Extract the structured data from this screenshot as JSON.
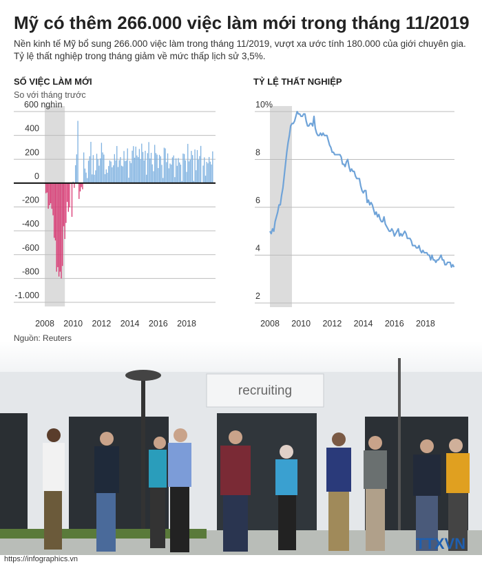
{
  "title": "Mỹ có thêm 266.000 việc làm mới trong tháng 11/2019",
  "description": [
    "Nền kinh tế Mỹ bổ sung 266.000 việc làm trong tháng 11/2019, vượt xa ước tính 180.000 của giới chuyên gia.",
    "Tỷ lệ thất nghiệp trong tháng giảm về mức thấp lịch sử 3,5%."
  ],
  "source": "Nguồn: Reuters",
  "photo": {
    "sign": "recruiting",
    "logo": "TTXVN"
  },
  "url": "https://infographics.vn",
  "chart_data": [
    {
      "type": "bar",
      "title": "SỐ VIỆC LÀM MỚI",
      "subtitle": "So với tháng trước",
      "color": "#7eb1e0",
      "negative_color": "#d8336f",
      "zero_line": true,
      "grid": true,
      "ylim": [
        -1000,
        600
      ],
      "yticks": [
        {
          "value": 600,
          "label": "600 nghìn"
        },
        400,
        200,
        0,
        -200,
        -400,
        -600,
        -800,
        {
          "value": -1000,
          "label": "-1.000"
        }
      ],
      "shade": {
        "from": 0,
        "to": 17
      },
      "categories": [
        "2008",
        null,
        null,
        null,
        null,
        null,
        null,
        null,
        null,
        null,
        null,
        null,
        null,
        null,
        null,
        null,
        null,
        null,
        null,
        null,
        null,
        null,
        null,
        null,
        "2010",
        null,
        null,
        null,
        null,
        null,
        null,
        null,
        null,
        null,
        null,
        null,
        null,
        null,
        null,
        null,
        null,
        null,
        null,
        null,
        null,
        null,
        null,
        null,
        "2012",
        null,
        null,
        null,
        null,
        null,
        null,
        null,
        null,
        null,
        null,
        null,
        null,
        null,
        null,
        null,
        null,
        null,
        null,
        null,
        null,
        null,
        null,
        null,
        "2014",
        null,
        null,
        null,
        null,
        null,
        null,
        null,
        null,
        null,
        null,
        null,
        null,
        null,
        null,
        null,
        null,
        null,
        null,
        null,
        null,
        null,
        null,
        null,
        "2016",
        null,
        null,
        null,
        null,
        null,
        null,
        null,
        null,
        null,
        null,
        null,
        null,
        null,
        null,
        null,
        null,
        null,
        null,
        null,
        null,
        null,
        null,
        null,
        "2018",
        null,
        null,
        null,
        null,
        null,
        null,
        null,
        null,
        null,
        null,
        null,
        null,
        null,
        null,
        null,
        null,
        null,
        null,
        null,
        null,
        null,
        null
      ],
      "values": [
        -7,
        -85,
        -79,
        -215,
        -186,
        -169,
        -216,
        -270,
        -459,
        -481,
        -743,
        -705,
        -784,
        -743,
        -800,
        -695,
        -362,
        -469,
        -334,
        -158,
        -241,
        -204,
        -6,
        -283,
        13,
        -40,
        150,
        241,
        522,
        -133,
        -70,
        -34,
        -52,
        257,
        122,
        88,
        42,
        188,
        225,
        346,
        73,
        235,
        70,
        107,
        246,
        202,
        146,
        207,
        338,
        257,
        239,
        75,
        115,
        87,
        143,
        190,
        181,
        132,
        149,
        243,
        190,
        311,
        135,
        192,
        218,
        146,
        140,
        269,
        185,
        189,
        291,
        45,
        187,
        168,
        272,
        310,
        213,
        306,
        232,
        218,
        286,
        200,
        331,
        261,
        190,
        271,
        70,
        251,
        344,
        206,
        254,
        157,
        100,
        321,
        252,
        239,
        126,
        237,
        225,
        153,
        43,
        297,
        291,
        176,
        249,
        124,
        164,
        155,
        216,
        232,
        50,
        207,
        145,
        210,
        173,
        155,
        18,
        248,
        244,
        191,
        94,
        329,
        182,
        196,
        270,
        235,
        19,
        282,
        108,
        277,
        196,
        227,
        312,
        1,
        147,
        216,
        62,
        178,
        166,
        219,
        180,
        156,
        266
      ]
    },
    {
      "type": "line",
      "title": "TỶ LỆ THẤT NGHIỆP",
      "color": "#6fa3d8",
      "grid": true,
      "ylim": [
        2,
        10
      ],
      "yticks": [
        {
          "value": 10,
          "label": "10%"
        },
        8,
        6,
        4,
        2
      ],
      "shade": {
        "from": 0,
        "to": 17
      },
      "categories": [
        "2008",
        null,
        null,
        null,
        null,
        null,
        null,
        null,
        null,
        null,
        null,
        null,
        null,
        null,
        null,
        null,
        null,
        null,
        null,
        null,
        null,
        null,
        null,
        null,
        "2010",
        null,
        null,
        null,
        null,
        null,
        null,
        null,
        null,
        null,
        null,
        null,
        null,
        null,
        null,
        null,
        null,
        null,
        null,
        null,
        null,
        null,
        null,
        null,
        "2012",
        null,
        null,
        null,
        null,
        null,
        null,
        null,
        null,
        null,
        null,
        null,
        null,
        null,
        null,
        null,
        null,
        null,
        null,
        null,
        null,
        null,
        null,
        null,
        "2014",
        null,
        null,
        null,
        null,
        null,
        null,
        null,
        null,
        null,
        null,
        null,
        null,
        null,
        null,
        null,
        null,
        null,
        null,
        null,
        null,
        null,
        null,
        null,
        "2016",
        null,
        null,
        null,
        null,
        null,
        null,
        null,
        null,
        null,
        null,
        null,
        null,
        null,
        null,
        null,
        null,
        null,
        null,
        null,
        null,
        null,
        null,
        null,
        "2018",
        null,
        null,
        null,
        null,
        null,
        null,
        null,
        null,
        null,
        null,
        null,
        null,
        null,
        null,
        null,
        null,
        null,
        null,
        null,
        null,
        null,
        null
      ],
      "values": [
        5.0,
        4.9,
        5.1,
        5.0,
        5.4,
        5.6,
        5.8,
        6.1,
        6.1,
        6.5,
        6.8,
        7.3,
        7.8,
        8.3,
        8.7,
        9.0,
        9.4,
        9.5,
        9.5,
        9.6,
        9.8,
        10.0,
        9.9,
        9.9,
        9.8,
        9.8,
        9.9,
        9.9,
        9.6,
        9.4,
        9.4,
        9.5,
        9.5,
        9.4,
        9.8,
        9.3,
        9.1,
        9.0,
        9.0,
        9.1,
        9.0,
        9.1,
        9.0,
        9.0,
        9.0,
        8.8,
        8.6,
        8.5,
        8.3,
        8.3,
        8.2,
        8.2,
        8.2,
        8.2,
        8.2,
        8.1,
        7.8,
        7.8,
        7.7,
        7.9,
        8.0,
        7.7,
        7.5,
        7.6,
        7.5,
        7.5,
        7.3,
        7.2,
        7.2,
        7.2,
        6.9,
        6.7,
        6.6,
        6.7,
        6.7,
        6.2,
        6.3,
        6.1,
        6.2,
        6.1,
        5.9,
        5.7,
        5.8,
        5.6,
        5.7,
        5.5,
        5.4,
        5.4,
        5.6,
        5.3,
        5.2,
        5.1,
        5.0,
        5.0,
        5.1,
        5.0,
        4.8,
        4.9,
        5.0,
        5.1,
        4.8,
        4.9,
        4.8,
        4.9,
        5.0,
        4.9,
        4.7,
        4.7,
        4.7,
        4.6,
        4.4,
        4.4,
        4.4,
        4.3,
        4.3,
        4.4,
        4.2,
        4.1,
        4.2,
        4.1,
        4.1,
        4.1,
        4.0,
        4.0,
        3.8,
        4.0,
        3.8,
        3.8,
        3.7,
        3.8,
        3.8,
        3.9,
        4.0,
        3.8,
        3.8,
        3.6,
        3.6,
        3.7,
        3.7,
        3.7,
        3.5,
        3.6,
        3.5
      ]
    }
  ]
}
